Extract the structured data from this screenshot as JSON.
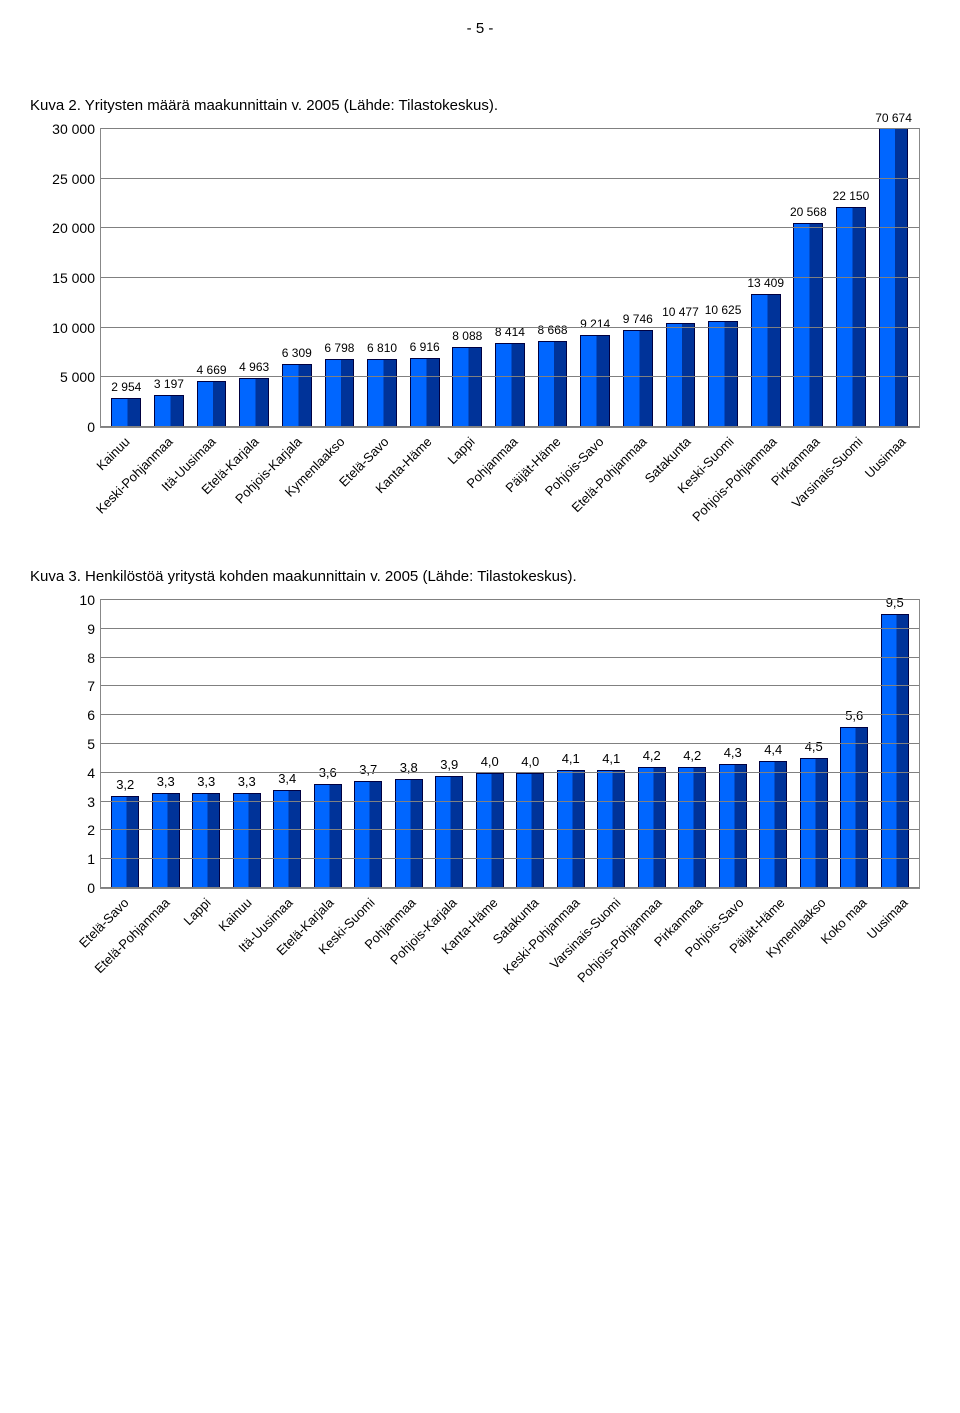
{
  "page_number_label": "- 5 -",
  "chart1": {
    "title": "Kuva 2. Yritysten määrä maakunnittain v. 2005 (Lähde: Tilastokeskus).",
    "type": "bar",
    "ymax": 30000,
    "ytick_step": 5000,
    "ytick_labels": [
      "0",
      "5 000",
      "10 000",
      "15 000",
      "20 000",
      "25 000",
      "30 000"
    ],
    "background_color": "#ffffff",
    "grid_color": "#808080",
    "bar_fill": "#0066ff",
    "bar_fill_dark": "#003399",
    "bar_border": "#000040",
    "label_fontsize": 12,
    "title_fontsize": 15,
    "categories": [
      "Kainuu",
      "Keski-Pohjanmaa",
      "Itä-Uusimaa",
      "Etelä-Karjala",
      "Pohjois-Karjala",
      "Kymenlaakso",
      "Etelä-Savo",
      "Kanta-Häme",
      "Lappi",
      "Pohjanmaa",
      "Päijät-Häme",
      "Pohjois-Savo",
      "Etelä-Pohjanmaa",
      "Satakunta",
      "Keski-Suomi",
      "Pohjois-Pohjanmaa",
      "Pirkanmaa",
      "Varsinais-Suomi",
      "Uusimaa"
    ],
    "values": [
      2954,
      3197,
      4669,
      4963,
      6309,
      6798,
      6810,
      6916,
      8088,
      8414,
      8668,
      9214,
      9746,
      10477,
      10625,
      13409,
      20568,
      22150,
      70674
    ],
    "value_labels": [
      "2 954",
      "3 197",
      "4 669",
      "4 963",
      "6 309",
      "6 798",
      "6 810",
      "6 916",
      "8 088",
      "8 414",
      "8 668",
      "9 214",
      "9 746",
      "10 477",
      "10 625",
      "13 409",
      "20 568",
      "22 150",
      "70 674"
    ]
  },
  "chart2": {
    "title": "Kuva 3. Henkilöstöä yritystä kohden maakunnittain v. 2005 (Lähde: Tilastokeskus).",
    "type": "bar",
    "ymax": 10,
    "ytick_step": 1,
    "ytick_labels": [
      "0",
      "1",
      "2",
      "3",
      "4",
      "5",
      "6",
      "7",
      "8",
      "9",
      "10"
    ],
    "background_color": "#ffffff",
    "grid_color": "#808080",
    "bar_fill": "#0066ff",
    "bar_fill_dark": "#003399",
    "bar_border": "#000040",
    "label_fontsize": 13,
    "title_fontsize": 15,
    "categories": [
      "Etelä-Savo",
      "Etelä-Pohjanmaa",
      "Lappi",
      "Kainuu",
      "Itä-Uusimaa",
      "Etelä-Karjala",
      "Keski-Suomi",
      "Pohjanmaa",
      "Pohjois-Karjala",
      "Kanta-Häme",
      "Satakunta",
      "Keski-Pohjanmaa",
      "Varsinais-Suomi",
      "Pohjois-Pohjanmaa",
      "Pirkanmaa",
      "Pohjois-Savo",
      "Päijät-Häme",
      "Kymenlaakso",
      "Koko maa",
      "Uusimaa"
    ],
    "values": [
      3.2,
      3.3,
      3.3,
      3.3,
      3.4,
      3.6,
      3.7,
      3.8,
      3.9,
      4.0,
      4.0,
      4.1,
      4.1,
      4.2,
      4.2,
      4.3,
      4.4,
      4.5,
      5.6,
      9.5
    ],
    "value_labels": [
      "3,2",
      "3,3",
      "3,3",
      "3,3",
      "3,4",
      "3,6",
      "3,7",
      "3,8",
      "3,9",
      "4,0",
      "4,0",
      "4,1",
      "4,1",
      "4,2",
      "4,2",
      "4,3",
      "4,4",
      "4,5",
      "5,6",
      "9,5"
    ]
  }
}
